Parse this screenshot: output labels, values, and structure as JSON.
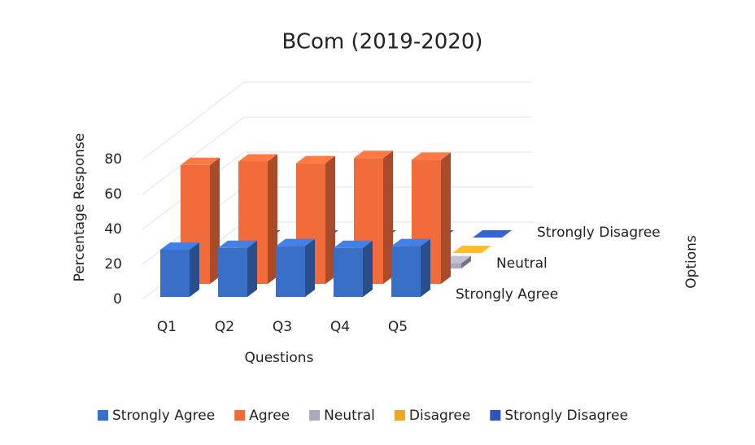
{
  "chart_data": {
    "type": "bar",
    "title": "BCom (2019-2020)",
    "y_label": "Percentage Response",
    "x_label": "Questions",
    "z_label": "Options",
    "categories": [
      "Q1",
      "Q2",
      "Q3",
      "Q4",
      "Q5"
    ],
    "series": [
      {
        "name": "Strongly Agree",
        "color": "#3a6fc8",
        "values": [
          27,
          28,
          29,
          28,
          29
        ]
      },
      {
        "name": "Agree",
        "color": "#f26b3a",
        "values": [
          68,
          70,
          69,
          72,
          71
        ]
      },
      {
        "name": "Neutral",
        "color": "#a8a9ba",
        "values": [
          3,
          3,
          3,
          3,
          3
        ]
      },
      {
        "name": "Disagree",
        "color": "#f0a623",
        "values": [
          0,
          0,
          0,
          0,
          0
        ]
      },
      {
        "name": "Strongly Disagree",
        "color": "#2f55b8",
        "values": [
          0,
          0,
          0,
          0,
          0
        ]
      }
    ],
    "depth_label_series": [
      4,
      2,
      0
    ],
    "ylim": [
      0,
      80
    ],
    "yticks": [
      0,
      20,
      40,
      60,
      80
    ],
    "grid": true
  }
}
